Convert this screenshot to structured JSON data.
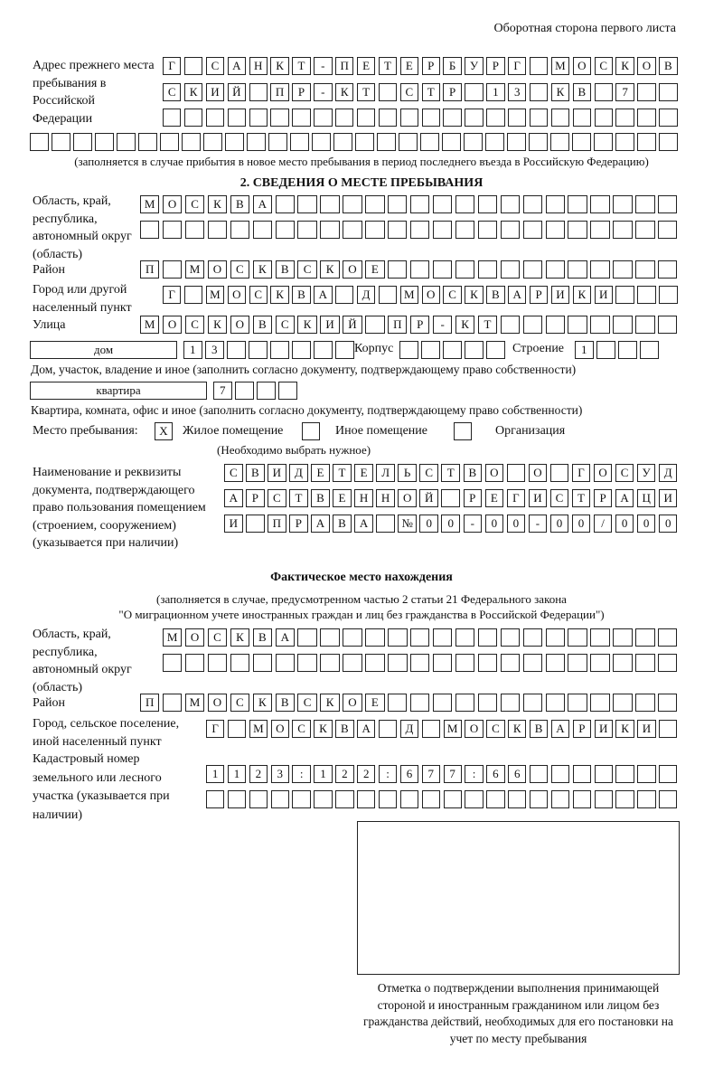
{
  "header": "Оборотная сторона первого листа",
  "previous_address": {
    "label": "Адрес прежнего места пребывания в Российской Федерации",
    "rows": [
      [
        "Г",
        "",
        "С",
        "А",
        "Н",
        "К",
        "Т",
        "-",
        "П",
        "Е",
        "Т",
        "Е",
        "Р",
        "Б",
        "У",
        "Р",
        "Г",
        "",
        "М",
        "О",
        "С",
        "К",
        "О",
        "В"
      ],
      [
        "С",
        "К",
        "И",
        "Й",
        "",
        "П",
        "Р",
        "-",
        "К",
        "Т",
        "",
        "С",
        "Т",
        "Р",
        "",
        "1",
        "3",
        "",
        "К",
        "В",
        "",
        "7",
        "",
        ""
      ],
      [
        "",
        "",
        "",
        "",
        "",
        "",
        "",
        "",
        "",
        "",
        "",
        "",
        "",
        "",
        "",
        "",
        "",
        "",
        "",
        "",
        "",
        "",
        "",
        ""
      ],
      [
        "",
        "",
        "",
        "",
        "",
        "",
        "",
        "",
        "",
        "",
        "",
        "",
        "",
        "",
        "",
        "",
        "",
        "",
        "",
        "",
        "",
        "",
        "",
        "",
        "",
        "",
        "",
        "",
        "",
        ""
      ]
    ],
    "note": "(заполняется в случае прибытия в новое место пребывания в период последнего въезда в Российскую Федерацию)"
  },
  "section2": {
    "title": "2. СВЕДЕНИЯ О МЕСТЕ ПРЕБЫВАНИЯ",
    "region_label": "Область, край, республика, автономный округ (область)",
    "region_rows": [
      [
        "М",
        "О",
        "С",
        "К",
        "В",
        "А",
        "",
        "",
        "",
        "",
        "",
        "",
        "",
        "",
        "",
        "",
        "",
        "",
        "",
        "",
        "",
        "",
        "",
        ""
      ],
      [
        "",
        "",
        "",
        "",
        "",
        "",
        "",
        "",
        "",
        "",
        "",
        "",
        "",
        "",
        "",
        "",
        "",
        "",
        "",
        "",
        "",
        "",
        "",
        ""
      ]
    ],
    "district_label": "Район",
    "district": [
      "П",
      "",
      "М",
      "О",
      "С",
      "К",
      "В",
      "С",
      "К",
      "О",
      "Е",
      "",
      "",
      "",
      "",
      "",
      "",
      "",
      "",
      "",
      "",
      "",
      "",
      ""
    ],
    "city_label": "Город или другой населенный пункт",
    "city": [
      "Г",
      "",
      "М",
      "О",
      "С",
      "К",
      "В",
      "А",
      "",
      "Д",
      "",
      "М",
      "О",
      "С",
      "К",
      "В",
      "А",
      "Р",
      "И",
      "К",
      "И",
      "",
      "",
      ""
    ],
    "street_label": "Улица",
    "street": [
      "М",
      "О",
      "С",
      "К",
      "О",
      "В",
      "С",
      "К",
      "И",
      "Й",
      "",
      "П",
      "Р",
      "-",
      "К",
      "Т",
      "",
      "",
      "",
      "",
      "",
      "",
      "",
      ""
    ],
    "house_type": "дом",
    "house": [
      "1",
      "3",
      "",
      "",
      "",
      "",
      "",
      ""
    ],
    "korpus_label": "Корпус",
    "korpus": [
      "",
      "",
      "",
      "",
      ""
    ],
    "building_label": "Строение",
    "building": [
      "1",
      "",
      "",
      ""
    ],
    "house_note": "Дом, участок, владение и иное (заполнить согласно документу, подтверждающему право собственности)",
    "flat_type": "квартира",
    "flat": [
      "7",
      "",
      "",
      ""
    ],
    "flat_note": "Квартира, комната, офис и иное (заполнить согласно документу, подтверждающему право собственности)",
    "stay_label": "Место пребывания:",
    "stay_options": [
      {
        "label": "Жилое помещение",
        "mark": "X",
        "checked": true
      },
      {
        "label": "Иное помещение",
        "mark": "",
        "checked": false
      },
      {
        "label": "Организация",
        "mark": "",
        "checked": false
      }
    ],
    "stay_note": "(Необходимо выбрать нужное)",
    "doc_label": "Наименование и реквизиты документа, подтверждающего право пользования помещением (строением, сооружением) (указывается при наличии)",
    "doc_rows": [
      [
        "С",
        "В",
        "И",
        "Д",
        "Е",
        "Т",
        "Е",
        "Л",
        "Ь",
        "С",
        "Т",
        "В",
        "О",
        "",
        "О",
        "",
        "Г",
        "О",
        "С",
        "У",
        "Д"
      ],
      [
        "А",
        "Р",
        "С",
        "Т",
        "В",
        "Е",
        "Н",
        "Н",
        "О",
        "Й",
        "",
        "Р",
        "Е",
        "Г",
        "И",
        "С",
        "Т",
        "Р",
        "А",
        "Ц",
        "И"
      ],
      [
        "И",
        "",
        "П",
        "Р",
        "А",
        "В",
        "А",
        "",
        "№",
        "0",
        "0",
        "-",
        "0",
        "0",
        "-",
        "0",
        "0",
        "/",
        "0",
        "0",
        "0"
      ]
    ]
  },
  "actual": {
    "title": "Фактическое место нахождения",
    "note1": "(заполняется в случае, предусмотренном частью 2 статьи 21 Федерального закона",
    "note2": "\"О миграционном учете иностранных граждан и лиц без гражданства в Российской Федерации\")",
    "region_label": "Область, край, республика, автономный округ (область)",
    "region_rows": [
      [
        "М",
        "О",
        "С",
        "К",
        "В",
        "А",
        "",
        "",
        "",
        "",
        "",
        "",
        "",
        "",
        "",
        "",
        "",
        "",
        "",
        "",
        "",
        "",
        ""
      ],
      [
        "",
        "",
        "",
        "",
        "",
        "",
        "",
        "",
        "",
        "",
        "",
        "",
        "",
        "",
        "",
        "",
        "",
        "",
        "",
        "",
        "",
        "",
        ""
      ]
    ],
    "district_label": "Район",
    "district": [
      "П",
      "",
      "М",
      "О",
      "С",
      "К",
      "В",
      "С",
      "К",
      "О",
      "Е",
      "",
      "",
      "",
      "",
      "",
      "",
      "",
      "",
      "",
      "",
      "",
      "",
      ""
    ],
    "city_label": "Город, сельское поселение, иной населенный пункт",
    "city": [
      "Г",
      "",
      "М",
      "О",
      "С",
      "К",
      "В",
      "А",
      "",
      "Д",
      "",
      "М",
      "О",
      "С",
      "К",
      "В",
      "А",
      "Р",
      "И",
      "К",
      "И",
      ""
    ],
    "cadastral_label": "Кадастровый номер земельного или лесного участка (указывается при наличии)",
    "cadastral_rows": [
      [
        "1",
        "1",
        "2",
        "3",
        ":",
        "1",
        "2",
        "2",
        ":",
        "6",
        "7",
        "7",
        ":",
        "6",
        "6",
        "",
        "",
        "",
        "",
        "",
        "",
        ""
      ],
      [
        "",
        "",
        "",
        "",
        "",
        "",
        "",
        "",
        "",
        "",
        "",
        "",
        "",
        "",
        "",
        "",
        "",
        "",
        "",
        "",
        "",
        ""
      ]
    ]
  },
  "confirmation_caption": "Отметка о подтверждении выполнения принимающей стороной и иностранным гражданином или лицом без гражданства действий, необходимых для его постановки на учет по месту пребывания"
}
